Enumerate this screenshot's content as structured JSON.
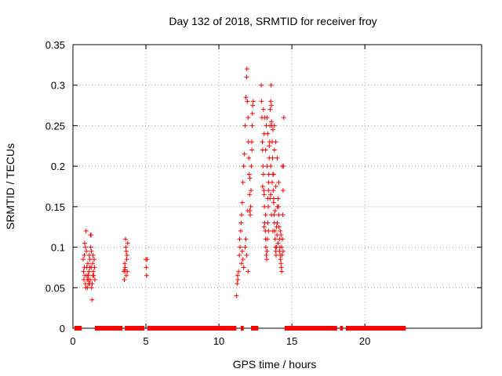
{
  "chart_data": {
    "type": "scatter",
    "title": "Day 132 of 2018, SRMTID for receiver froy",
    "xlabel": "GPS time / hours",
    "ylabel": "SRMTID / TECUs",
    "xlim": [
      0,
      28
    ],
    "ylim": [
      0,
      0.35
    ],
    "xticks": [
      0,
      5,
      10,
      15,
      20
    ],
    "yticks": [
      0,
      0.05,
      0.1,
      0.15,
      0.2,
      0.25,
      0.3,
      0.35
    ],
    "xtick_labels": [
      "0",
      "5",
      "10",
      "15",
      "20"
    ],
    "ytick_labels": [
      "0",
      "0.05",
      "0.1",
      "0.15",
      "0.2",
      "0.25",
      "0.3",
      "0.35"
    ],
    "grid": true,
    "marker": "+",
    "color": "#ff0000",
    "series": [
      {
        "points": [
          [
            0.7,
            0.085
          ],
          [
            0.72,
            0.07
          ],
          [
            0.75,
            0.06
          ],
          [
            0.78,
            0.09
          ],
          [
            0.8,
            0.105
          ],
          [
            0.82,
            0.065
          ],
          [
            0.85,
            0.055
          ],
          [
            0.88,
            0.05
          ],
          [
            0.9,
            0.12
          ],
          [
            0.92,
            0.095
          ],
          [
            0.95,
            0.075
          ],
          [
            0.98,
            0.06
          ],
          [
            1.0,
            0.05
          ],
          [
            1.02,
            0.08
          ],
          [
            1.05,
            0.065
          ],
          [
            1.08,
            0.055
          ],
          [
            1.1,
            0.07
          ],
          [
            1.12,
            0.09
          ],
          [
            1.15,
            0.085
          ],
          [
            1.18,
            0.06
          ],
          [
            1.2,
            0.115
          ],
          [
            1.22,
            0.1
          ],
          [
            1.25,
            0.075
          ],
          [
            1.28,
            0.05
          ],
          [
            1.3,
            0.035
          ],
          [
            1.32,
            0.055
          ],
          [
            1.35,
            0.08
          ],
          [
            1.38,
            0.09
          ],
          [
            1.4,
            0.07
          ],
          [
            1.42,
            0.065
          ],
          [
            1.45,
            0.085
          ],
          [
            1.48,
            0.075
          ],
          [
            1.5,
            0.06
          ],
          [
            0.78,
            0.075
          ],
          [
            0.86,
            0.1
          ],
          [
            0.96,
            0.065
          ],
          [
            1.06,
            0.06
          ],
          [
            1.16,
            0.075
          ],
          [
            1.26,
            0.095
          ],
          [
            1.36,
            0.065
          ],
          [
            1.24,
            0.115
          ],
          [
            1.14,
            0.055
          ],
          [
            3.5,
            0.07
          ],
          [
            3.52,
            0.06
          ],
          [
            3.55,
            0.08
          ],
          [
            3.58,
            0.075
          ],
          [
            3.6,
            0.11
          ],
          [
            3.62,
            0.1
          ],
          [
            3.65,
            0.065
          ],
          [
            3.68,
            0.085
          ],
          [
            3.7,
            0.09
          ],
          [
            3.72,
            0.07
          ],
          [
            3.75,
            0.105
          ],
          [
            3.55,
            0.072
          ],
          [
            3.65,
            0.095
          ],
          [
            5.0,
            0.085
          ],
          [
            5.02,
            0.075
          ],
          [
            5.05,
            0.065
          ],
          [
            5.08,
            0.085
          ],
          [
            11.2,
            0.04
          ],
          [
            11.25,
            0.055
          ],
          [
            11.3,
            0.06
          ],
          [
            11.35,
            0.07
          ],
          [
            11.4,
            0.09
          ],
          [
            11.45,
            0.1
          ],
          [
            11.5,
            0.12
          ],
          [
            11.55,
            0.14
          ],
          [
            11.6,
            0.155
          ],
          [
            11.65,
            0.18
          ],
          [
            11.7,
            0.2
          ],
          [
            11.75,
            0.215
          ],
          [
            11.8,
            0.25
          ],
          [
            11.85,
            0.285
          ],
          [
            11.9,
            0.31
          ],
          [
            11.92,
            0.32
          ],
          [
            11.95,
            0.28
          ],
          [
            12.0,
            0.26
          ],
          [
            12.02,
            0.23
          ],
          [
            12.05,
            0.21
          ],
          [
            12.08,
            0.19
          ],
          [
            12.1,
            0.165
          ],
          [
            12.12,
            0.145
          ],
          [
            12.15,
            0.14
          ],
          [
            12.18,
            0.15
          ],
          [
            12.2,
            0.17
          ],
          [
            12.22,
            0.2
          ],
          [
            12.25,
            0.23
          ],
          [
            12.28,
            0.25
          ],
          [
            12.3,
            0.265
          ],
          [
            12.32,
            0.275
          ],
          [
            12.35,
            0.28
          ],
          [
            11.55,
            0.08
          ],
          [
            11.6,
            0.095
          ],
          [
            11.65,
            0.085
          ],
          [
            11.7,
            0.075
          ],
          [
            11.8,
            0.1
          ],
          [
            11.85,
            0.11
          ],
          [
            11.9,
            0.09
          ],
          [
            12.0,
            0.07
          ],
          [
            11.28,
            0.065
          ],
          [
            11.42,
            0.11
          ],
          [
            11.52,
            0.13
          ],
          [
            11.98,
            0.145
          ],
          [
            12.12,
            0.185
          ],
          [
            12.26,
            0.22
          ],
          [
            12.9,
            0.3
          ],
          [
            12.92,
            0.28
          ],
          [
            12.95,
            0.26
          ],
          [
            12.98,
            0.23
          ],
          [
            13.0,
            0.22
          ],
          [
            13.02,
            0.2
          ],
          [
            13.05,
            0.19
          ],
          [
            13.08,
            0.17
          ],
          [
            13.1,
            0.165
          ],
          [
            13.12,
            0.15
          ],
          [
            13.15,
            0.13
          ],
          [
            13.18,
            0.12
          ],
          [
            13.2,
            0.11
          ],
          [
            13.22,
            0.1
          ],
          [
            13.25,
            0.09
          ],
          [
            13.28,
            0.085
          ],
          [
            13.3,
            0.095
          ],
          [
            13.32,
            0.11
          ],
          [
            13.35,
            0.13
          ],
          [
            13.38,
            0.15
          ],
          [
            13.4,
            0.17
          ],
          [
            13.42,
            0.19
          ],
          [
            13.45,
            0.21
          ],
          [
            13.48,
            0.23
          ],
          [
            13.5,
            0.25
          ],
          [
            13.52,
            0.27
          ],
          [
            13.55,
            0.28
          ],
          [
            13.58,
            0.3
          ],
          [
            13.6,
            0.275
          ],
          [
            13.62,
            0.25
          ],
          [
            13.65,
            0.23
          ],
          [
            13.68,
            0.21
          ],
          [
            13.7,
            0.19
          ],
          [
            13.72,
            0.17
          ],
          [
            13.75,
            0.155
          ],
          [
            13.78,
            0.14
          ],
          [
            13.8,
            0.13
          ],
          [
            13.82,
            0.12
          ],
          [
            13.85,
            0.11
          ],
          [
            13.88,
            0.1
          ],
          [
            13.9,
            0.095
          ],
          [
            13.92,
            0.09
          ],
          [
            13.95,
            0.1
          ],
          [
            13.98,
            0.115
          ],
          [
            14.0,
            0.13
          ],
          [
            14.02,
            0.15
          ],
          [
            14.05,
            0.16
          ],
          [
            14.08,
            0.15
          ],
          [
            14.1,
            0.14
          ],
          [
            14.12,
            0.125
          ],
          [
            14.15,
            0.11
          ],
          [
            14.18,
            0.1
          ],
          [
            14.2,
            0.09
          ],
          [
            14.22,
            0.085
          ],
          [
            14.25,
            0.08
          ],
          [
            14.28,
            0.075
          ],
          [
            14.3,
            0.07
          ],
          [
            14.32,
            0.09
          ],
          [
            14.35,
            0.11
          ],
          [
            14.38,
            0.14
          ],
          [
            14.4,
            0.17
          ],
          [
            14.42,
            0.2
          ],
          [
            14.45,
            0.26
          ],
          [
            13.1,
            0.24
          ],
          [
            13.2,
            0.22
          ],
          [
            13.3,
            0.2
          ],
          [
            13.4,
            0.18
          ],
          [
            13.5,
            0.16
          ],
          [
            13.6,
            0.14
          ],
          [
            13.7,
            0.12
          ],
          [
            13.8,
            0.25
          ],
          [
            13.9,
            0.23
          ],
          [
            14.0,
            0.21
          ],
          [
            14.1,
            0.18
          ],
          [
            13.05,
            0.27
          ],
          [
            13.15,
            0.26
          ],
          [
            13.25,
            0.25
          ],
          [
            13.35,
            0.24
          ],
          [
            13.45,
            0.225
          ],
          [
            13.55,
            0.2
          ],
          [
            13.65,
            0.18
          ],
          [
            13.75,
            0.16
          ],
          [
            13.85,
            0.145
          ],
          [
            13.95,
            0.125
          ],
          [
            14.05,
            0.105
          ],
          [
            14.15,
            0.095
          ],
          [
            14.25,
            0.115
          ],
          [
            14.35,
            0.2
          ],
          [
            14.4,
            0.095
          ],
          [
            13.3,
            0.26
          ],
          [
            13.6,
            0.255
          ],
          [
            13.7,
            0.245
          ],
          [
            13.8,
            0.22
          ],
          [
            13.0,
            0.175
          ],
          [
            13.2,
            0.14
          ],
          [
            13.4,
            0.12
          ],
          [
            13.1,
            0.125
          ],
          [
            13.35,
            0.16
          ],
          [
            13.55,
            0.165
          ],
          [
            13.75,
            0.19
          ],
          [
            13.9,
            0.175
          ],
          [
            14.2,
            0.12
          ],
          [
            14.3,
            0.1
          ]
        ]
      }
    ],
    "baseline_segments": [
      [
        0.1,
        0.6
      ],
      [
        1.5,
        3.4
      ],
      [
        3.55,
        4.9
      ],
      [
        5.1,
        11.2
      ],
      [
        11.5,
        11.7
      ],
      [
        12.2,
        12.7
      ],
      [
        14.5,
        18.1
      ],
      [
        18.3,
        18.5
      ],
      [
        18.7,
        22.8
      ]
    ]
  }
}
